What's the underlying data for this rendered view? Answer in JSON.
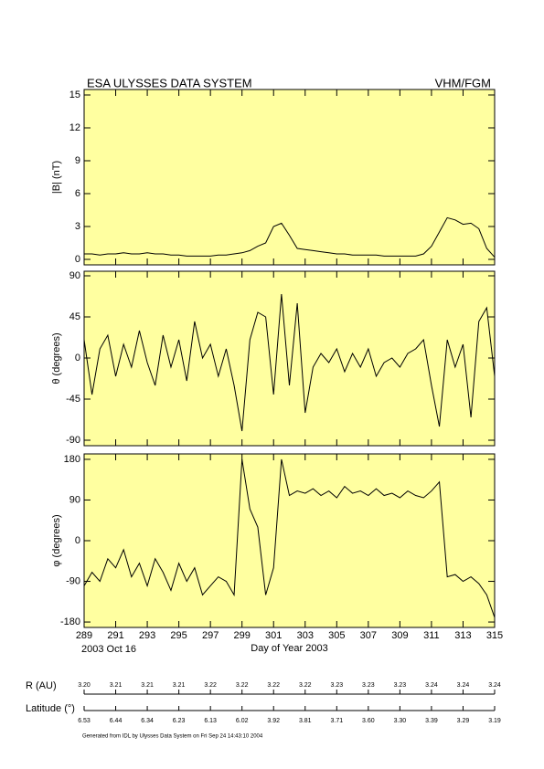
{
  "header": {
    "left": "ESA ULYSSES DATA SYSTEM",
    "right": "VHM/FGM"
  },
  "chart_data": [
    {
      "type": "line",
      "ylabel": "|B| (nT)",
      "color": "#000000",
      "background": "#ffffa0",
      "x": [
        289,
        289.5,
        290,
        290.5,
        291,
        291.5,
        292,
        292.5,
        293,
        293.5,
        294,
        294.5,
        295,
        295.5,
        296,
        296.5,
        297,
        297.5,
        298,
        298.5,
        299,
        299.5,
        300,
        300.5,
        301,
        301.5,
        302,
        302.5,
        303,
        303.5,
        304,
        304.5,
        305,
        305.5,
        306,
        306.5,
        307,
        307.5,
        308,
        308.5,
        309,
        309.5,
        310,
        310.5,
        311,
        311.5,
        312,
        312.5,
        313,
        313.5,
        314,
        314.5,
        315
      ],
      "values": [
        0.5,
        0.5,
        0.4,
        0.5,
        0.5,
        0.6,
        0.5,
        0.5,
        0.6,
        0.5,
        0.5,
        0.4,
        0.4,
        0.3,
        0.3,
        0.3,
        0.3,
        0.4,
        0.4,
        0.5,
        0.6,
        0.8,
        1.2,
        1.5,
        3.0,
        3.3,
        2.2,
        1.0,
        0.9,
        0.8,
        0.7,
        0.6,
        0.5,
        0.5,
        0.4,
        0.4,
        0.4,
        0.4,
        0.3,
        0.3,
        0.3,
        0.3,
        0.3,
        0.5,
        1.2,
        2.5,
        3.8,
        3.6,
        3.2,
        3.3,
        2.8,
        1.0,
        0.2
      ],
      "xlim": [
        289,
        315
      ],
      "xticks": [
        289,
        291,
        293,
        295,
        297,
        299,
        301,
        303,
        305,
        307,
        309,
        311,
        313,
        315
      ],
      "ylim": [
        -0.5,
        15.5
      ],
      "yticks": [
        0,
        3,
        6,
        9,
        12,
        15
      ]
    },
    {
      "type": "line",
      "ylabel": "θ (degrees)",
      "color": "#000000",
      "background": "#ffffa0",
      "x": [
        289,
        289.5,
        290,
        290.5,
        291,
        291.5,
        292,
        292.5,
        293,
        293.5,
        294,
        294.5,
        295,
        295.5,
        296,
        296.5,
        297,
        297.5,
        298,
        298.5,
        299,
        299.5,
        300,
        300.5,
        301,
        301.5,
        302,
        302.5,
        303,
        303.5,
        304,
        304.5,
        305,
        305.5,
        306,
        306.5,
        307,
        307.5,
        308,
        308.5,
        309,
        309.5,
        310,
        310.5,
        311,
        311.5,
        312,
        312.5,
        313,
        313.5,
        314,
        314.5,
        315
      ],
      "values": [
        20,
        -40,
        10,
        25,
        -20,
        15,
        -10,
        30,
        -5,
        -30,
        25,
        -10,
        20,
        -25,
        40,
        0,
        15,
        -20,
        10,
        -30,
        -80,
        20,
        50,
        45,
        -40,
        70,
        -30,
        60,
        -60,
        -10,
        5,
        -5,
        10,
        -15,
        5,
        -10,
        10,
        -20,
        -5,
        0,
        -10,
        5,
        10,
        20,
        -30,
        -75,
        20,
        -10,
        15,
        -65,
        40,
        55,
        -20
      ],
      "xlim": [
        289,
        315
      ],
      "xticks": [
        289,
        291,
        293,
        295,
        297,
        299,
        301,
        303,
        305,
        307,
        309,
        311,
        313,
        315
      ],
      "ylim": [
        -96,
        95
      ],
      "yticks": [
        -90,
        -45,
        0,
        45,
        90
      ]
    },
    {
      "type": "line",
      "ylabel": "φ (degrees)",
      "xlabel": "Day of Year 2003",
      "date_label": "2003 Oct 16",
      "color": "#000000",
      "background": "#ffffa0",
      "x": [
        289,
        289.5,
        290,
        290.5,
        291,
        291.5,
        292,
        292.5,
        293,
        293.5,
        294,
        294.5,
        295,
        295.5,
        296,
        296.5,
        297,
        297.5,
        298,
        298.5,
        299,
        299.5,
        300,
        300.5,
        301,
        301.5,
        302,
        302.5,
        303,
        303.5,
        304,
        304.5,
        305,
        305.5,
        306,
        306.5,
        307,
        307.5,
        308,
        308.5,
        309,
        309.5,
        310,
        310.5,
        311,
        311.5,
        312,
        312.5,
        313,
        313.5,
        314,
        314.5,
        315
      ],
      "values": [
        -100,
        -70,
        -90,
        -40,
        -60,
        -20,
        -80,
        -50,
        -100,
        -40,
        -70,
        -110,
        -50,
        -90,
        -60,
        -120,
        -100,
        -80,
        -90,
        -120,
        180,
        70,
        30,
        -120,
        -60,
        180,
        100,
        110,
        105,
        115,
        100,
        110,
        95,
        120,
        105,
        110,
        100,
        115,
        100,
        105,
        95,
        110,
        100,
        95,
        110,
        130,
        -80,
        -75,
        -90,
        -80,
        -95,
        -120,
        -170
      ],
      "xlim": [
        289,
        315
      ],
      "xticks": [
        289,
        291,
        293,
        295,
        297,
        299,
        301,
        303,
        305,
        307,
        309,
        311,
        313,
        315
      ],
      "ylim": [
        -192,
        192
      ],
      "yticks": [
        -180,
        -90,
        0,
        90,
        180
      ]
    }
  ],
  "ephemeris": {
    "r_label": "R (AU)",
    "lat_label": "Latitude (°)",
    "r": [
      "3.20",
      "3.21",
      "3.21",
      "3.21",
      "3.22",
      "3.22",
      "3.22",
      "3.22",
      "3.23",
      "3.23",
      "3.23",
      "3.24",
      "3.24",
      "3.24"
    ],
    "lat": [
      "6.53",
      "6.44",
      "6.34",
      "6.23",
      "6.13",
      "6.02",
      "3.92",
      "3.81",
      "3.71",
      "3.60",
      "3.30",
      "3.39",
      "3.29",
      "3.19"
    ]
  },
  "footer": "Generated from IDL by Ulysses Data System on Fri Sep 24 14:43:10 2004"
}
